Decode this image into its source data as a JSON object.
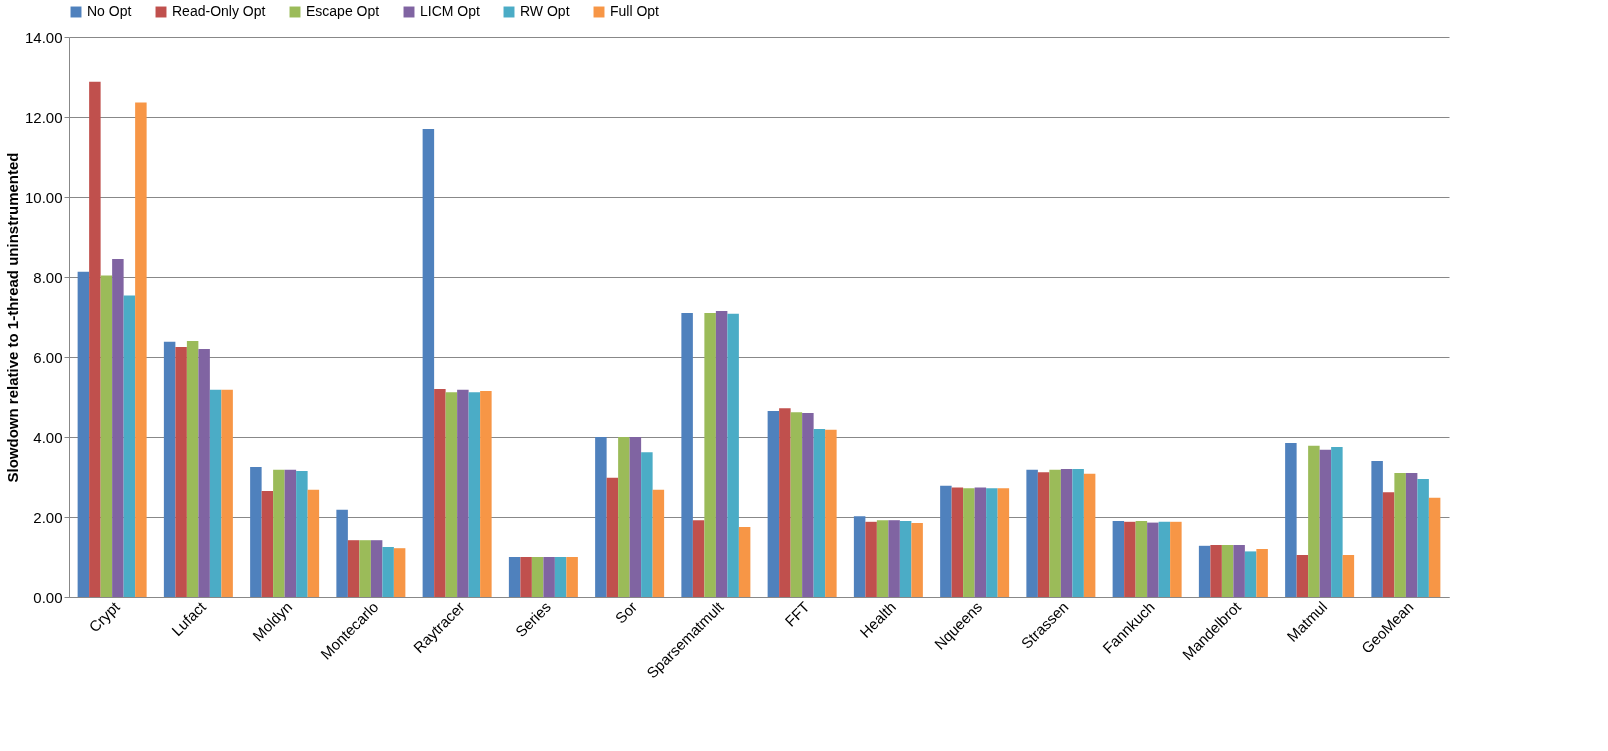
{
  "chart_data": {
    "type": "bar",
    "ylabel": "Slowdown relative to 1-thread uninstrumented",
    "categories": [
      "Crypt",
      "Lufact",
      "Moldyn",
      "Montecarlo",
      "Raytracer",
      "Series",
      "Sor",
      "Sparsematmult",
      "FFT",
      "Health",
      "Nqueens",
      "Strassen",
      "Fannkuch",
      "Mandelbrot",
      "Matmul",
      "GeoMean"
    ],
    "series": [
      {
        "name": "No Opt",
        "color": "#4f81bd",
        "values": [
          8.13,
          6.38,
          3.25,
          2.18,
          11.7,
          1.0,
          4.0,
          7.1,
          4.65,
          2.02,
          2.78,
          3.18,
          1.9,
          1.28,
          3.85,
          3.4
        ]
      },
      {
        "name": "Read-Only Opt",
        "color": "#c0504d",
        "values": [
          12.88,
          6.25,
          2.65,
          1.42,
          5.2,
          1.0,
          2.98,
          1.92,
          4.72,
          1.88,
          2.74,
          3.12,
          1.88,
          1.3,
          1.05,
          2.62
        ]
      },
      {
        "name": "Escape Opt",
        "color": "#9bbb59",
        "values": [
          8.04,
          6.4,
          3.18,
          1.42,
          5.12,
          1.0,
          4.0,
          7.1,
          4.62,
          1.92,
          2.72,
          3.18,
          1.9,
          1.3,
          3.78,
          3.1
        ]
      },
      {
        "name": "LICM Opt",
        "color": "#8064a2",
        "values": [
          8.45,
          6.2,
          3.18,
          1.42,
          5.18,
          1.0,
          4.0,
          7.15,
          4.6,
          1.92,
          2.74,
          3.2,
          1.86,
          1.3,
          3.68,
          3.1
        ]
      },
      {
        "name": "RW Opt",
        "color": "#4bacc6",
        "values": [
          7.54,
          5.18,
          3.15,
          1.25,
          5.12,
          1.0,
          3.62,
          7.08,
          4.2,
          1.9,
          2.72,
          3.2,
          1.88,
          1.14,
          3.75,
          2.95
        ]
      },
      {
        "name": "Full Opt",
        "color": "#f79646",
        "values": [
          12.36,
          5.18,
          2.68,
          1.22,
          5.15,
          1.0,
          2.68,
          1.75,
          4.18,
          1.85,
          2.72,
          3.08,
          1.88,
          1.2,
          1.05,
          2.48
        ]
      }
    ],
    "ylim": [
      0,
      14
    ],
    "yticks": [
      {
        "value": 0,
        "label": "0.00"
      },
      {
        "value": 2,
        "label": "2.00"
      },
      {
        "value": 4,
        "label": "4.00"
      },
      {
        "value": 6,
        "label": "6.00"
      },
      {
        "value": 8,
        "label": "8.00"
      },
      {
        "value": 10,
        "label": "10.00"
      },
      {
        "value": 12,
        "label": "12.00"
      },
      {
        "value": 14,
        "label": "14.00"
      }
    ],
    "grid": "y",
    "legend": "top"
  }
}
